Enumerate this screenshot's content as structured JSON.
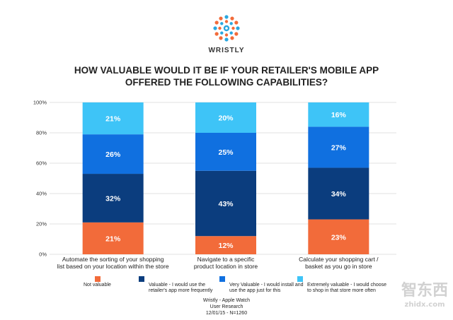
{
  "brand": {
    "name": "WRISTLY",
    "colors": {
      "orange": "#f26b3a",
      "blue": "#2aa7e0",
      "dark": "#333333"
    }
  },
  "chart_data": {
    "type": "bar",
    "stacked": true,
    "title": "HOW VALUABLE WOULD IT BE IF YOUR RETAILER'S MOBILE APP OFFERED THE FOLLOWING CAPABILITIES?",
    "title_lines": [
      "HOW VALUABLE WOULD IT BE IF YOUR RETAILER'S MOBILE APP",
      "OFFERED THE FOLLOWING CAPABILITIES?"
    ],
    "ylim": [
      0,
      100
    ],
    "yticks": [
      "0%",
      "20%",
      "40%",
      "60%",
      "80%",
      "100%"
    ],
    "categories": [
      [
        "Automate the sorting of your shopping",
        "list based on your location within the store"
      ],
      [
        "Navigate to a specific",
        "product location in store"
      ],
      [
        "Calculate your shopping cart /",
        "basket as you go in store"
      ]
    ],
    "series": [
      {
        "name": "Not valuable",
        "legend_lines": [
          "Not valuable"
        ],
        "color": "#f26b3a",
        "values": [
          21,
          12,
          23
        ]
      },
      {
        "name": "Valuable - I would use the retailer's app more frequently",
        "legend_lines": [
          "Valuable - I would use the",
          "retailer's app more frequently"
        ],
        "color": "#0b3d7e",
        "values": [
          32,
          43,
          34
        ]
      },
      {
        "name": "Very Valuable - I would install and use the app just for this",
        "legend_lines": [
          "Very Valuable - I would install and",
          "use the app just for this"
        ],
        "color": "#1070e0",
        "values": [
          26,
          25,
          27
        ]
      },
      {
        "name": "Extremely valuable - I would choose to shop in that store more often",
        "legend_lines": [
          "Extremely valuable - I would choose",
          "to shop in that store more often"
        ],
        "color": "#3ec4f7",
        "values": [
          21,
          20,
          16
        ]
      }
    ],
    "footnote": [
      "Wristly - Apple Watch",
      "User Research",
      "12/01/15 - N=1260"
    ]
  },
  "watermark": {
    "cn": "智东西",
    "domain": "zhidx.com"
  }
}
